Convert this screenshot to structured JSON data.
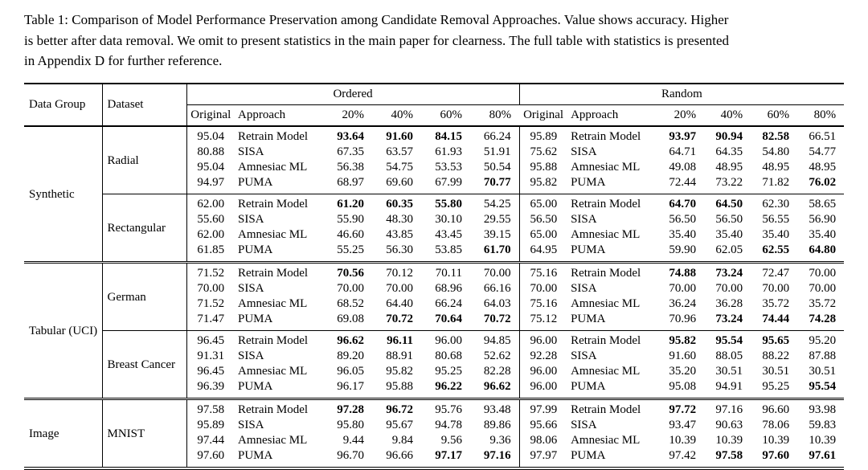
{
  "colors": {
    "text": "#000000",
    "background": "#ffffff"
  },
  "caption_lines": [
    "Table 1: Comparison of Model Performance Preservation among Candidate Removal Approaches. Value shows accuracy. Higher",
    "is better after data removal. We omit to present statistics in the main paper for clearness. The full table with statistics is presented",
    "in Appendix D for further reference."
  ],
  "table": {
    "header": {
      "col1": "Data Group",
      "col2": "Dataset",
      "span_ordered": "Ordered",
      "span_random": "Random",
      "sub": [
        "Original",
        "Approach",
        "20%",
        "40%",
        "60%",
        "80%"
      ]
    },
    "sections": [
      {
        "data_group": "Synthetic",
        "datasets": [
          {
            "dataset": "Radial",
            "rows": [
              {
                "ordered": {
                  "original": "95.04",
                  "approach": "Retrain Model",
                  "vals": [
                    "93.64",
                    "91.60",
                    "84.15",
                    "66.24"
                  ],
                  "bold": [
                    0,
                    1,
                    2
                  ]
                },
                "random": {
                  "original": "95.89",
                  "approach": "Retrain Model",
                  "vals": [
                    "93.97",
                    "90.94",
                    "82.58",
                    "66.51"
                  ],
                  "bold": [
                    0,
                    1,
                    2
                  ]
                }
              },
              {
                "ordered": {
                  "original": "80.88",
                  "approach": "SISA",
                  "vals": [
                    "67.35",
                    "63.57",
                    "61.93",
                    "51.91"
                  ],
                  "bold": []
                },
                "random": {
                  "original": "75.62",
                  "approach": "SISA",
                  "vals": [
                    "64.71",
                    "64.35",
                    "54.80",
                    "54.77"
                  ],
                  "bold": []
                }
              },
              {
                "ordered": {
                  "original": "95.04",
                  "approach": "Amnesiac ML",
                  "vals": [
                    "56.38",
                    "54.75",
                    "53.53",
                    "50.54"
                  ],
                  "bold": []
                },
                "random": {
                  "original": "95.88",
                  "approach": "Amnesiac ML",
                  "vals": [
                    "49.08",
                    "48.95",
                    "48.95",
                    "48.95"
                  ],
                  "bold": []
                }
              },
              {
                "ordered": {
                  "original": "94.97",
                  "approach": "PUMA",
                  "vals": [
                    "68.97",
                    "69.60",
                    "67.99",
                    "70.77"
                  ],
                  "bold": [
                    3
                  ]
                },
                "random": {
                  "original": "95.82",
                  "approach": "PUMA",
                  "vals": [
                    "72.44",
                    "73.22",
                    "71.82",
                    "76.02"
                  ],
                  "bold": [
                    3
                  ]
                }
              }
            ]
          },
          {
            "dataset": "Rectangular",
            "rows": [
              {
                "ordered": {
                  "original": "62.00",
                  "approach": "Retrain Model",
                  "vals": [
                    "61.20",
                    "60.35",
                    "55.80",
                    "54.25"
                  ],
                  "bold": [
                    0,
                    1,
                    2
                  ]
                },
                "random": {
                  "original": "65.00",
                  "approach": "Retrain Model",
                  "vals": [
                    "64.70",
                    "64.50",
                    "62.30",
                    "58.65"
                  ],
                  "bold": [
                    0,
                    1
                  ]
                }
              },
              {
                "ordered": {
                  "original": "55.60",
                  "approach": "SISA",
                  "vals": [
                    "55.90",
                    "48.30",
                    "30.10",
                    "29.55"
                  ],
                  "bold": []
                },
                "random": {
                  "original": "56.50",
                  "approach": "SISA",
                  "vals": [
                    "56.50",
                    "56.50",
                    "56.55",
                    "56.90"
                  ],
                  "bold": []
                }
              },
              {
                "ordered": {
                  "original": "62.00",
                  "approach": "Amnesiac ML",
                  "vals": [
                    "46.60",
                    "43.85",
                    "43.45",
                    "39.15"
                  ],
                  "bold": []
                },
                "random": {
                  "original": "65.00",
                  "approach": "Amnesiac ML",
                  "vals": [
                    "35.40",
                    "35.40",
                    "35.40",
                    "35.40"
                  ],
                  "bold": []
                }
              },
              {
                "ordered": {
                  "original": "61.85",
                  "approach": "PUMA",
                  "vals": [
                    "55.25",
                    "56.30",
                    "53.85",
                    "61.70"
                  ],
                  "bold": [
                    3
                  ]
                },
                "random": {
                  "original": "64.95",
                  "approach": "PUMA",
                  "vals": [
                    "59.90",
                    "62.05",
                    "62.55",
                    "64.80"
                  ],
                  "bold": [
                    2,
                    3
                  ]
                }
              }
            ]
          }
        ]
      },
      {
        "data_group": "Tabular (UCI)",
        "datasets": [
          {
            "dataset": "German",
            "rows": [
              {
                "ordered": {
                  "original": "71.52",
                  "approach": "Retrain Model",
                  "vals": [
                    "70.56",
                    "70.12",
                    "70.11",
                    "70.00"
                  ],
                  "bold": [
                    0
                  ]
                },
                "random": {
                  "original": "75.16",
                  "approach": "Retrain Model",
                  "vals": [
                    "74.88",
                    "73.24",
                    "72.47",
                    "70.00"
                  ],
                  "bold": [
                    0,
                    1
                  ]
                }
              },
              {
                "ordered": {
                  "original": "70.00",
                  "approach": "SISA",
                  "vals": [
                    "70.00",
                    "70.00",
                    "68.96",
                    "66.16"
                  ],
                  "bold": []
                },
                "random": {
                  "original": "70.00",
                  "approach": "SISA",
                  "vals": [
                    "70.00",
                    "70.00",
                    "70.00",
                    "70.00"
                  ],
                  "bold": []
                }
              },
              {
                "ordered": {
                  "original": "71.52",
                  "approach": "Amnesiac ML",
                  "vals": [
                    "68.52",
                    "64.40",
                    "66.24",
                    "64.03"
                  ],
                  "bold": []
                },
                "random": {
                  "original": "75.16",
                  "approach": "Amnesiac ML",
                  "vals": [
                    "36.24",
                    "36.28",
                    "35.72",
                    "35.72"
                  ],
                  "bold": []
                }
              },
              {
                "ordered": {
                  "original": "71.47",
                  "approach": "PUMA",
                  "vals": [
                    "69.08",
                    "70.72",
                    "70.64",
                    "70.72"
                  ],
                  "bold": [
                    1,
                    2,
                    3
                  ]
                },
                "random": {
                  "original": "75.12",
                  "approach": "PUMA",
                  "vals": [
                    "70.96",
                    "73.24",
                    "74.44",
                    "74.28"
                  ],
                  "bold": [
                    1,
                    2,
                    3
                  ]
                }
              }
            ]
          },
          {
            "dataset": "Breast Cancer",
            "rows": [
              {
                "ordered": {
                  "original": "96.45",
                  "approach": "Retrain Model",
                  "vals": [
                    "96.62",
                    "96.11",
                    "96.00",
                    "94.85"
                  ],
                  "bold": [
                    0,
                    1
                  ]
                },
                "random": {
                  "original": "96.00",
                  "approach": "Retrain Model",
                  "vals": [
                    "95.82",
                    "95.54",
                    "95.65",
                    "95.20"
                  ],
                  "bold": [
                    0,
                    1,
                    2
                  ]
                }
              },
              {
                "ordered": {
                  "original": "91.31",
                  "approach": "SISA",
                  "vals": [
                    "89.20",
                    "88.91",
                    "80.68",
                    "52.62"
                  ],
                  "bold": []
                },
                "random": {
                  "original": "92.28",
                  "approach": "SISA",
                  "vals": [
                    "91.60",
                    "88.05",
                    "88.22",
                    "87.88"
                  ],
                  "bold": []
                }
              },
              {
                "ordered": {
                  "original": "96.45",
                  "approach": "Amnesiac ML",
                  "vals": [
                    "96.05",
                    "95.82",
                    "95.25",
                    "82.28"
                  ],
                  "bold": []
                },
                "random": {
                  "original": "96.00",
                  "approach": "Amnesiac ML",
                  "vals": [
                    "35.20",
                    "30.51",
                    "30.51",
                    "30.51"
                  ],
                  "bold": []
                }
              },
              {
                "ordered": {
                  "original": "96.39",
                  "approach": "PUMA",
                  "vals": [
                    "96.17",
                    "95.88",
                    "96.22",
                    "96.62"
                  ],
                  "bold": [
                    2,
                    3
                  ]
                },
                "random": {
                  "original": "96.00",
                  "approach": "PUMA",
                  "vals": [
                    "95.08",
                    "94.91",
                    "95.25",
                    "95.54"
                  ],
                  "bold": [
                    3
                  ]
                }
              }
            ]
          }
        ]
      },
      {
        "data_group": "Image",
        "datasets": [
          {
            "dataset": "MNIST",
            "rows": [
              {
                "ordered": {
                  "original": "97.58",
                  "approach": "Retrain Model",
                  "vals": [
                    "97.28",
                    "96.72",
                    "95.76",
                    "93.48"
                  ],
                  "bold": [
                    0,
                    1
                  ]
                },
                "random": {
                  "original": "97.99",
                  "approach": "Retrain Model",
                  "vals": [
                    "97.72",
                    "97.16",
                    "96.60",
                    "93.98"
                  ],
                  "bold": [
                    0
                  ]
                }
              },
              {
                "ordered": {
                  "original": "95.89",
                  "approach": "SISA",
                  "vals": [
                    "95.80",
                    "95.67",
                    "94.78",
                    "89.86"
                  ],
                  "bold": []
                },
                "random": {
                  "original": "95.66",
                  "approach": "SISA",
                  "vals": [
                    "93.47",
                    "90.63",
                    "78.06",
                    "59.83"
                  ],
                  "bold": []
                }
              },
              {
                "ordered": {
                  "original": "97.44",
                  "approach": "Amnesiac ML",
                  "vals": [
                    "9.44",
                    "9.84",
                    "9.56",
                    "9.36"
                  ],
                  "bold": []
                },
                "random": {
                  "original": "98.06",
                  "approach": "Amnesiac ML",
                  "vals": [
                    "10.39",
                    "10.39",
                    "10.39",
                    "10.39"
                  ],
                  "bold": []
                }
              },
              {
                "ordered": {
                  "original": "97.60",
                  "approach": "PUMA",
                  "vals": [
                    "96.70",
                    "96.66",
                    "97.17",
                    "97.16"
                  ],
                  "bold": [
                    2,
                    3
                  ]
                },
                "random": {
                  "original": "97.97",
                  "approach": "PUMA",
                  "vals": [
                    "97.42",
                    "97.58",
                    "97.60",
                    "97.61"
                  ],
                  "bold": [
                    1,
                    2,
                    3
                  ]
                }
              }
            ]
          }
        ]
      }
    ]
  }
}
